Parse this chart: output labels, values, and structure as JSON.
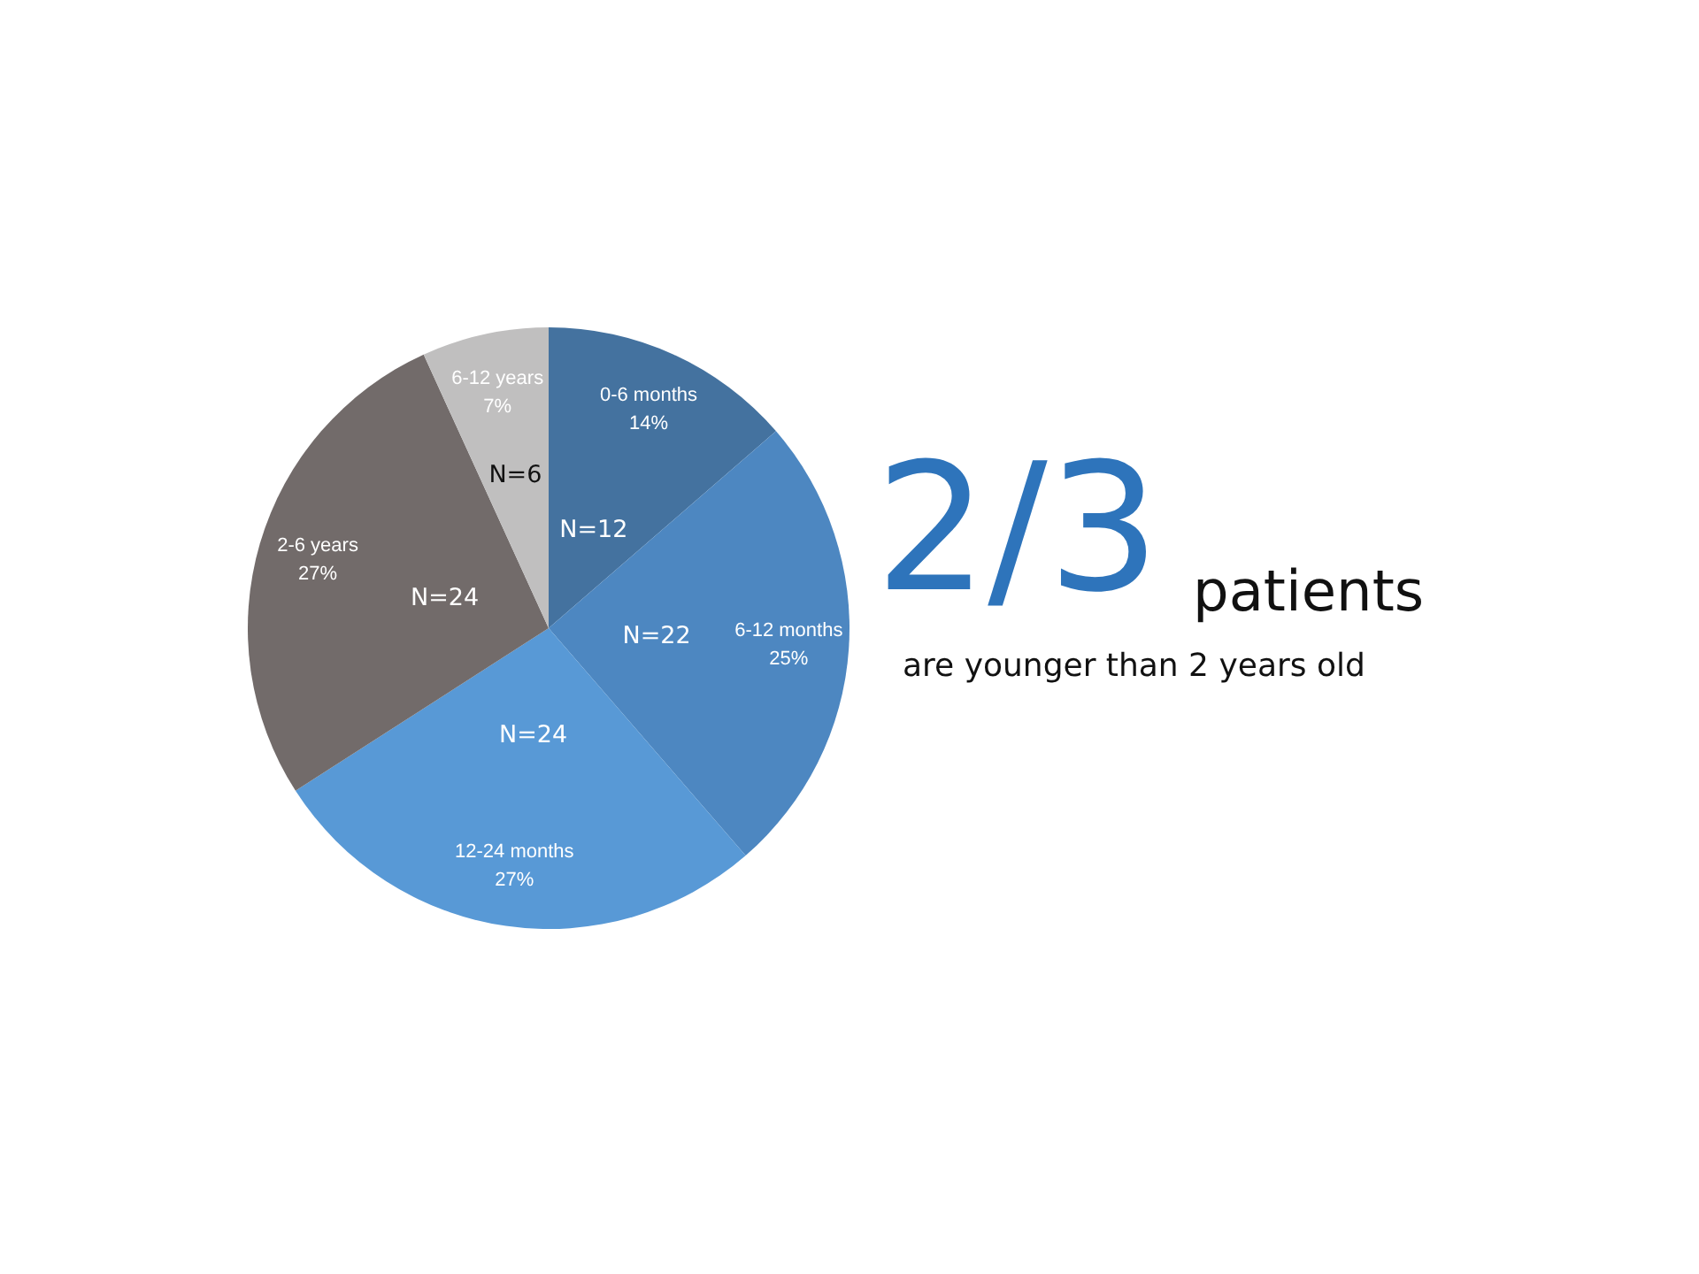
{
  "chart_data": {
    "type": "pie",
    "categories": [
      "0-6 months",
      "6-12 months",
      "12-24 months",
      "2-6 years",
      "6-12 years"
    ],
    "values": [
      12,
      22,
      24,
      24,
      6
    ],
    "colors": [
      "#44729f",
      "#4d87c1",
      "#5899d6",
      "#726b6a",
      "#c0bfbf"
    ],
    "value_labels": [
      "N=12",
      "N=22",
      "N=24",
      "N=24",
      "N=6"
    ],
    "annotations": [
      {
        "text": "14%",
        "x": "0-6 months"
      },
      {
        "text": "25%",
        "x": "6-12 months"
      },
      {
        "text": "27%",
        "x": "12-24 months"
      },
      {
        "text": "27%",
        "x": "2-6 years"
      },
      {
        "text": "7%",
        "x": "6-12 years"
      },
      "2/3",
      "patients",
      "are younger than 2 years old"
    ]
  }
}
